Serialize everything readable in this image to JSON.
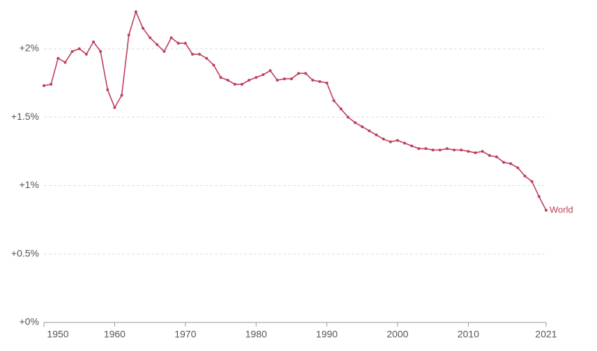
{
  "chart_data": {
    "type": "line",
    "x": [
      1950,
      1951,
      1952,
      1953,
      1954,
      1955,
      1956,
      1957,
      1958,
      1959,
      1960,
      1961,
      1962,
      1963,
      1964,
      1965,
      1966,
      1967,
      1968,
      1969,
      1970,
      1971,
      1972,
      1973,
      1974,
      1975,
      1976,
      1977,
      1978,
      1979,
      1980,
      1981,
      1982,
      1983,
      1984,
      1985,
      1986,
      1987,
      1988,
      1989,
      1990,
      1991,
      1992,
      1993,
      1994,
      1995,
      1996,
      1997,
      1998,
      1999,
      2000,
      2001,
      2002,
      2003,
      2004,
      2005,
      2006,
      2007,
      2008,
      2009,
      2010,
      2011,
      2012,
      2013,
      2014,
      2015,
      2016,
      2017,
      2018,
      2019,
      2020,
      2021
    ],
    "series": [
      {
        "name": "World",
        "color": "#be3e5b",
        "values": [
          1.73,
          1.74,
          1.93,
          1.9,
          1.98,
          2.0,
          1.96,
          2.05,
          1.98,
          1.7,
          1.57,
          1.66,
          2.1,
          2.27,
          2.15,
          2.08,
          2.03,
          1.98,
          2.08,
          2.04,
          2.04,
          1.96,
          1.96,
          1.93,
          1.88,
          1.79,
          1.77,
          1.74,
          1.74,
          1.77,
          1.79,
          1.81,
          1.84,
          1.77,
          1.78,
          1.78,
          1.82,
          1.82,
          1.77,
          1.76,
          1.75,
          1.62,
          1.56,
          1.5,
          1.46,
          1.43,
          1.4,
          1.37,
          1.34,
          1.32,
          1.33,
          1.31,
          1.29,
          1.27,
          1.27,
          1.26,
          1.26,
          1.27,
          1.26,
          1.26,
          1.25,
          1.24,
          1.25,
          1.22,
          1.21,
          1.17,
          1.16,
          1.13,
          1.07,
          1.03,
          0.92,
          0.82
        ]
      }
    ],
    "xlim": [
      1950,
      2021
    ],
    "xticks": [
      1950,
      1960,
      1970,
      1980,
      1990,
      2000,
      2010,
      2021
    ],
    "ylim": [
      0,
      2.3
    ],
    "yticks": [
      {
        "value": 0,
        "label": "+0%"
      },
      {
        "value": 0.5,
        "label": "+0.5%"
      },
      {
        "value": 1,
        "label": "+1%"
      },
      {
        "value": 1.5,
        "label": "+1.5%"
      },
      {
        "value": 2,
        "label": "+2%"
      }
    ],
    "grid": true
  }
}
